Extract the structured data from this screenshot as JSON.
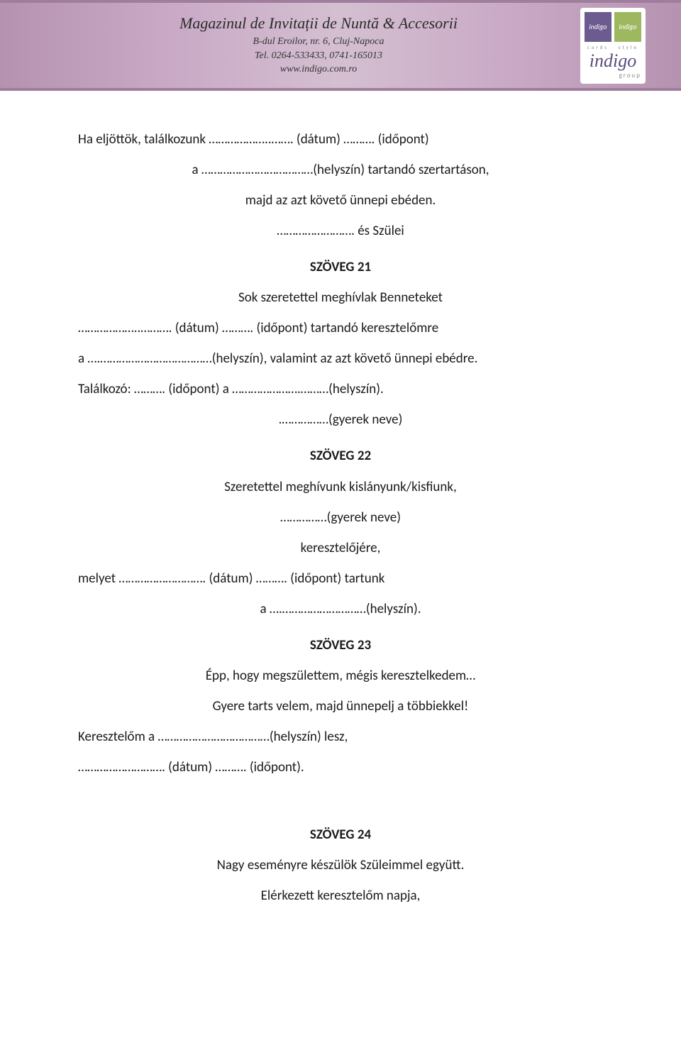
{
  "banner": {
    "title": "Magazinul de Invitații de Nuntă & Accesorii",
    "address": "B-dul Eroilor, nr. 6, Cluj-Napoca",
    "phone": "Tel. 0264-533433, 0741-165013",
    "website": "www.indigo.com.ro",
    "logo_text1": "indigo",
    "logo_text2": "indigo",
    "logo_sub1": "cards",
    "logo_sub2": "style",
    "logo_big": "indigo",
    "logo_group": "group",
    "colors": {
      "banner_border": "#a07d9c",
      "logo_purple": "#6b5b8e",
      "logo_green": "#9eb860",
      "logo_big_color": "#5a4a7d"
    }
  },
  "body": {
    "p1": "Ha eljöttök, találkozunk ………………..……. (dátum) ………. (időpont)",
    "p2": "a ………………………………(helyszín) tartandó szertartáson,",
    "p3": "majd az azt követő ünnepi ebéden.",
    "p4": "……………………. és Szülei",
    "h21": "SZÖVEG 21",
    "p5": "Sok szeretettel meghívlak Benneteket",
    "p6": "………………..………. (dátum) ………. (időpont) tartandó keresztelőmre",
    "p7": "a ….………………………………(helyszín), valamint az azt követő ünnepi ebédre.",
    "p8": "Találkozó: ………. (időpont) a ………………….………(helyszín).",
    "p9": ".……………(gyerek neve)",
    "h22": "SZÖVEG 22",
    "p10": "Szeretettel meghívunk kislányunk/kisfiunk,",
    "p11": "……………(gyerek neve)",
    "p12": "keresztelőjére,",
    "p13": "melyet ………………………. (dátum) ………. (időpont) tartunk",
    "p14": "a ….………………………(helyszín).",
    "h23": "SZÖVEG 23",
    "p15": "Épp, hogy megszülettem, mégis keresztelkedem…",
    "p16": "Gyere tarts velem, majd ünnepelj a többiekkel!",
    "p17": "Keresztelőm a ………………………………(helyszín) lesz,",
    "p18": "………………………. (dátum) ………. (időpont).",
    "h24": "SZÖVEG 24",
    "p19": "Nagy eseményre készülök Szüleimmel együtt.",
    "p20": "Elérkezett keresztelőm napja,"
  }
}
